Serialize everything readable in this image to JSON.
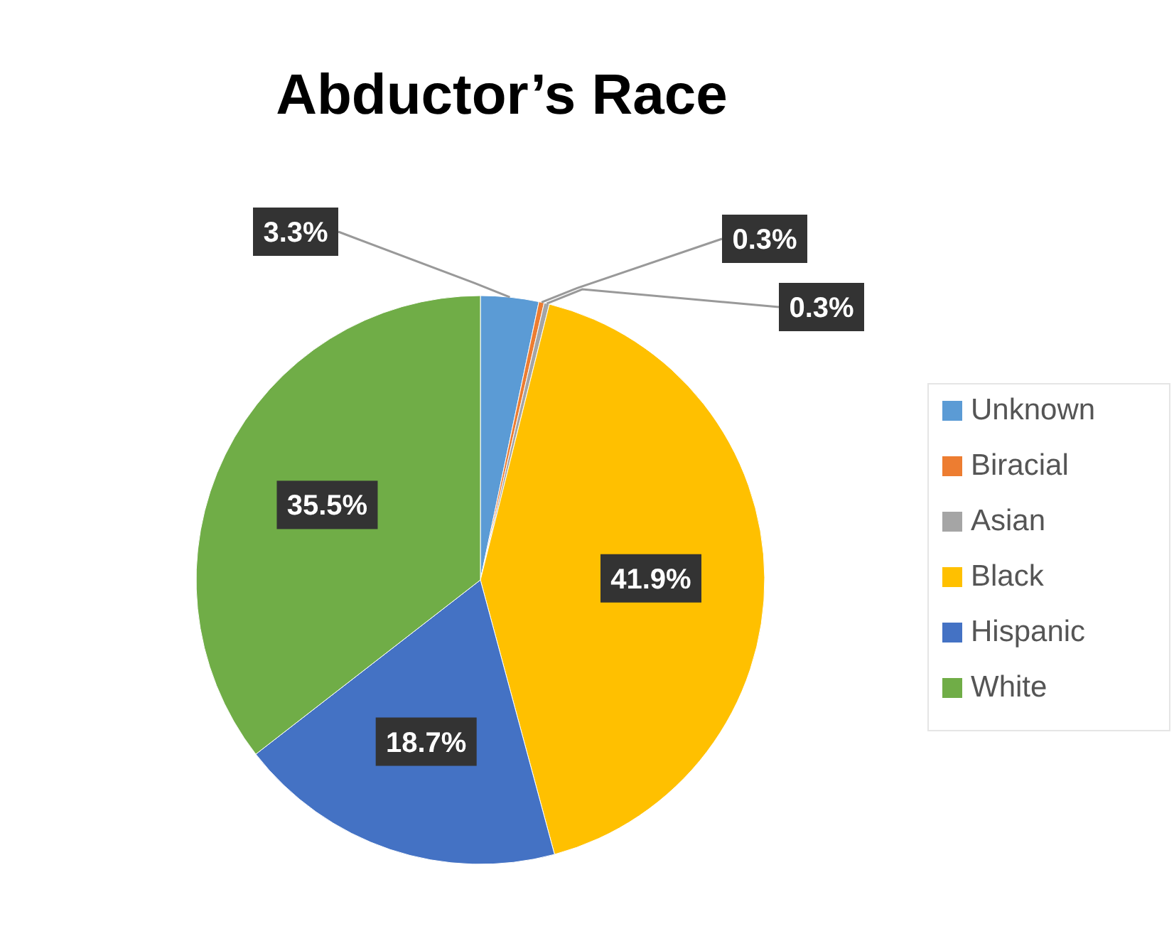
{
  "chart_data": {
    "type": "pie",
    "title": "Abductor’s Race",
    "categories": [
      "Unknown",
      "Biracial",
      "Asian",
      "Black",
      "Hispanic",
      "White"
    ],
    "values": [
      3.3,
      0.3,
      0.3,
      41.9,
      18.7,
      35.5
    ],
    "value_labels": [
      "3.3%",
      "0.3%",
      "0.3%",
      "41.9%",
      "18.7%",
      "35.5%"
    ],
    "colors": [
      "#5b9bd5",
      "#ed7d31",
      "#a5a5a5",
      "#ffc000",
      "#4472c4",
      "#70ad47"
    ],
    "legend": "right"
  }
}
